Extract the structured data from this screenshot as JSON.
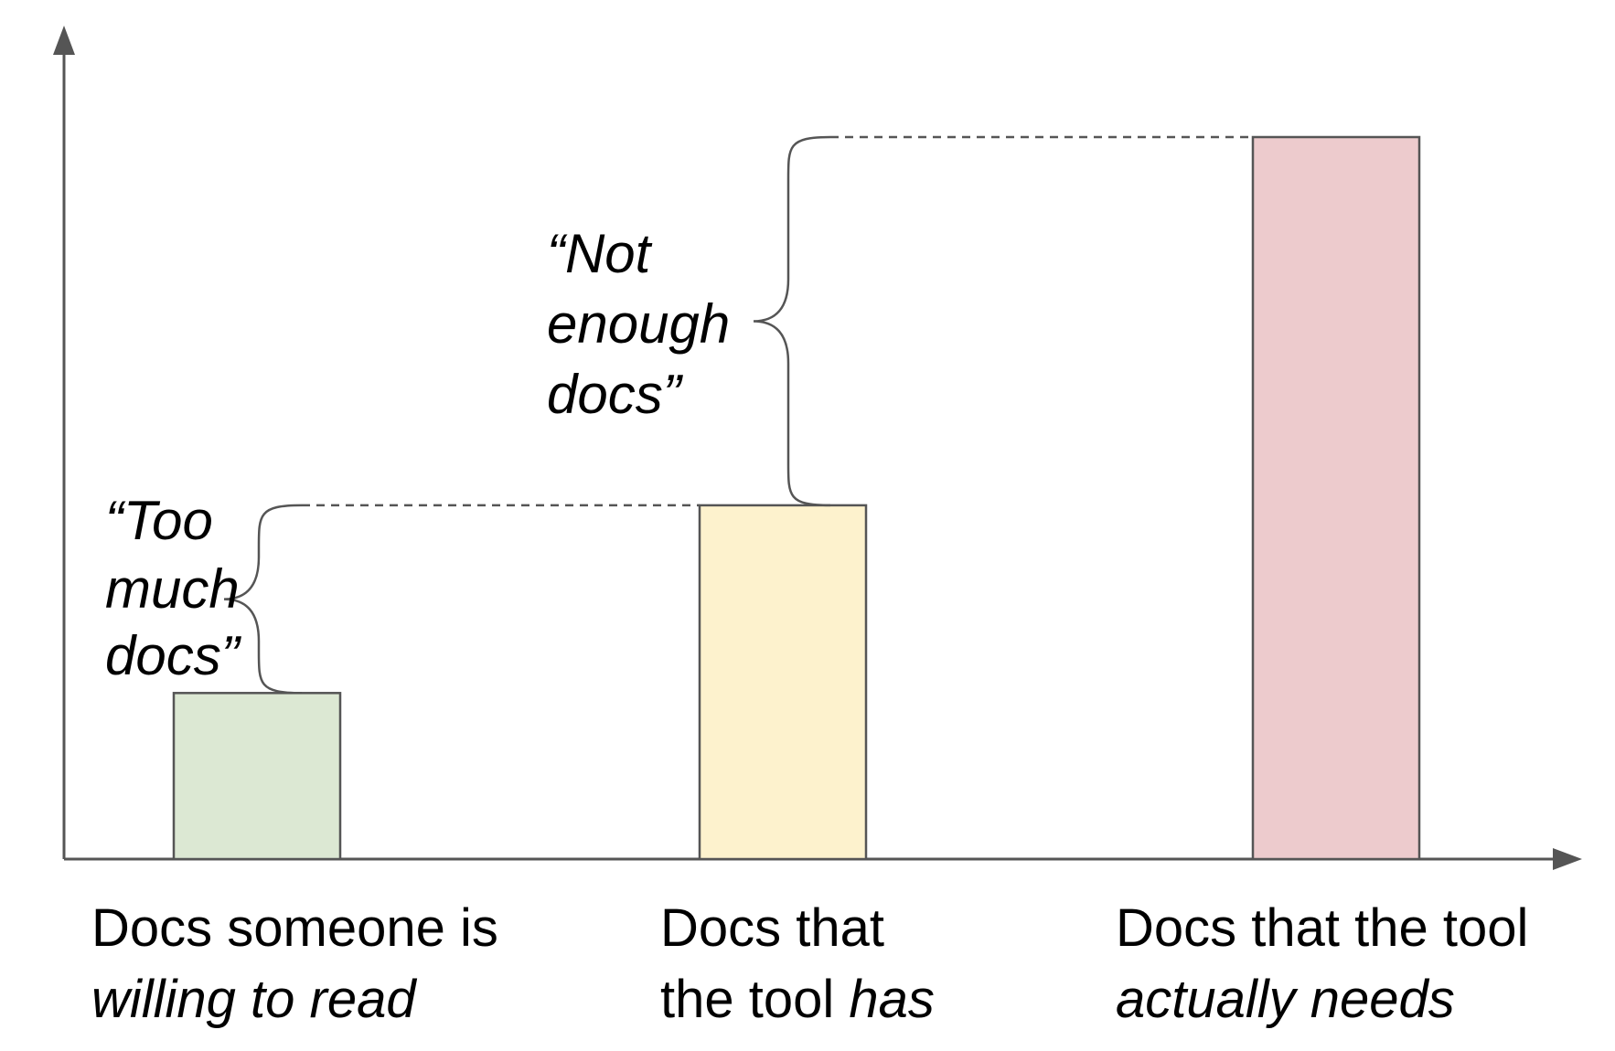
{
  "chart_data": {
    "type": "bar",
    "categories": [
      {
        "lines": [
          [
            {
              "text": "Docs someone is",
              "italic": false
            }
          ],
          [
            {
              "text": "willing to read",
              "italic": true
            }
          ]
        ]
      },
      {
        "lines": [
          [
            {
              "text": "Docs that",
              "italic": false
            }
          ],
          [
            {
              "text": "the tool ",
              "italic": false
            },
            {
              "text": "has",
              "italic": true
            }
          ]
        ]
      },
      {
        "lines": [
          [
            {
              "text": "Docs that the tool",
              "italic": false
            }
          ],
          [
            {
              "text": "actually needs",
              "italic": true
            }
          ]
        ]
      }
    ],
    "values": [
      23,
      49,
      100
    ],
    "ylim": [
      0,
      115
    ],
    "colors": [
      "#dce8d3",
      "#fdf2cd",
      "#edcbcd"
    ],
    "bar_stroke": "#555555",
    "axis_color": "#555555",
    "annotations": [
      {
        "lines": [
          "“Too",
          "much",
          "docs”"
        ],
        "from_bar": 0,
        "to_bar": 1
      },
      {
        "lines": [
          "“Not",
          "enough",
          "docs”"
        ],
        "from_bar": 1,
        "to_bar": 2
      }
    ],
    "title": "",
    "xlabel": "",
    "ylabel": "",
    "grid": false,
    "legend": "none"
  }
}
